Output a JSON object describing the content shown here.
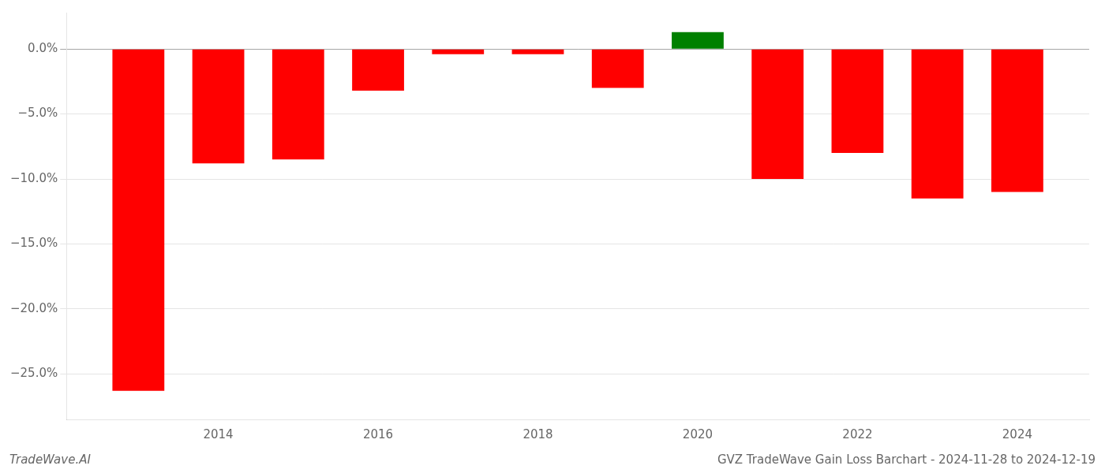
{
  "chart_data": {
    "type": "bar",
    "x": [
      2013,
      2014,
      2015,
      2016,
      2017,
      2018,
      2019,
      2020,
      2021,
      2022,
      2023,
      2024
    ],
    "values": [
      -26.3,
      -8.8,
      -8.5,
      -3.2,
      -0.4,
      -0.4,
      -3.0,
      1.3,
      -10.0,
      -8.0,
      -11.5,
      -11.0
    ],
    "colors": [
      "#ff0000",
      "#ff0000",
      "#ff0000",
      "#ff0000",
      "#ff0000",
      "#ff0000",
      "#ff0000",
      "#008000",
      "#ff0000",
      "#ff0000",
      "#ff0000",
      "#ff0000"
    ],
    "xlim": [
      2012.1,
      2024.9
    ],
    "xticks": [
      2014,
      2016,
      2018,
      2020,
      2022,
      2024
    ],
    "ylim": [
      -28.5,
      2.8
    ],
    "yticks": [
      {
        "value": 0.0,
        "label": "0.0%"
      },
      {
        "value": -5.0,
        "label": "−5.0%"
      },
      {
        "value": -10.0,
        "label": "−10.0%"
      },
      {
        "value": -15.0,
        "label": "−15.0%"
      },
      {
        "value": -20.0,
        "label": "−20.0%"
      },
      {
        "value": -25.0,
        "label": "−25.0%"
      }
    ],
    "grid": true,
    "annotations": [
      "TradeWave.AI",
      "GVZ TradeWave Gain Loss Barchart - 2024-11-28 to 2024-12-19"
    ]
  }
}
